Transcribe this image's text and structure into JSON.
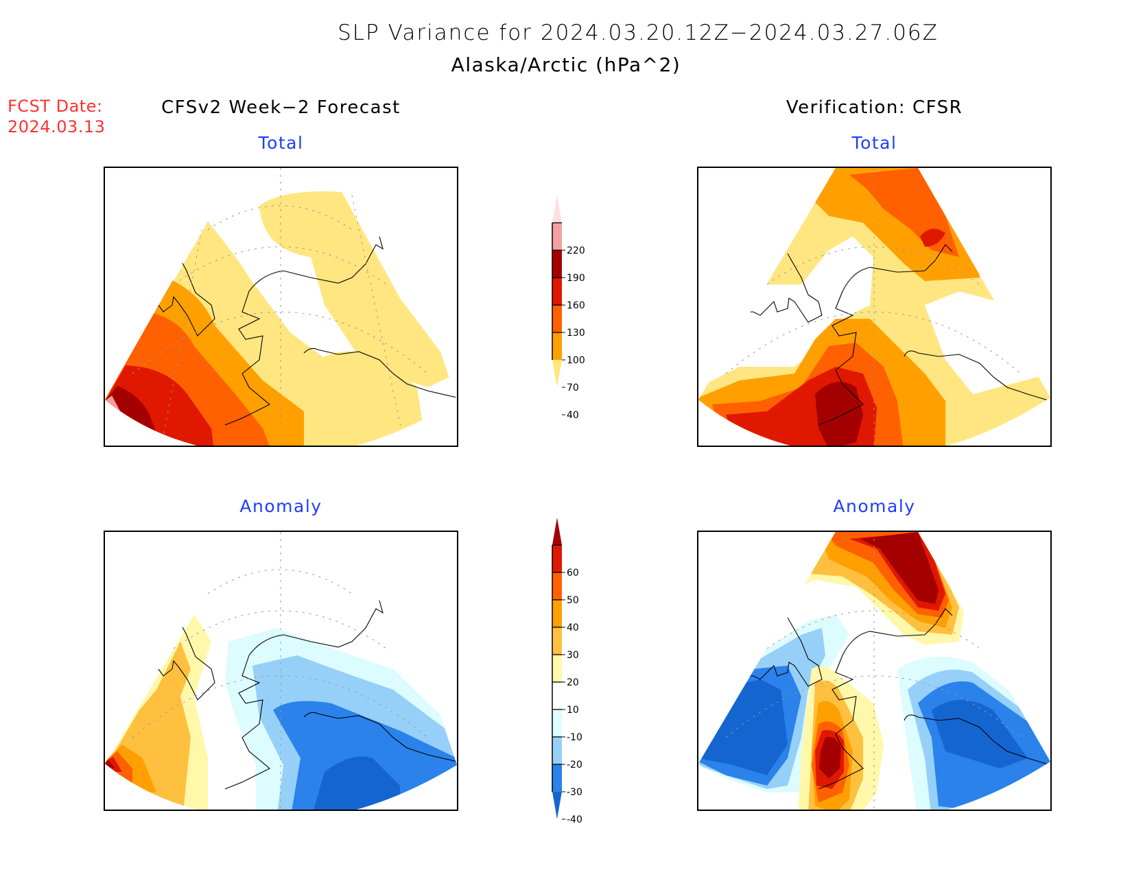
{
  "header": {
    "title": "SLP Variance for 2024.03.20.12Z−2024.03.27.06Z",
    "subtitle": "Alaska/Arctic (hPa^2)",
    "fcst_label": "FCST Date:",
    "fcst_date": "2024.03.13"
  },
  "columns": {
    "left_title": "CFSv2 Week−2 Forecast",
    "right_title": "Verification: CFSR"
  },
  "panels": {
    "top_left_label": "Total",
    "top_right_label": "Total",
    "bottom_left_label": "Anomaly",
    "bottom_right_label": "Anomaly"
  },
  "colors": {
    "fcst_red": "#ff3030",
    "subtitle_blue": "#1f3cff"
  },
  "chart_data": [
    {
      "type": "heatmap",
      "name": "total_colorbar",
      "title": "Total",
      "levels": [
        40,
        70,
        100,
        130,
        160,
        190,
        220
      ],
      "tick_labels": [
        "40",
        "70",
        "100",
        "130",
        "160",
        "190",
        "220"
      ],
      "colors": [
        "#ffe680",
        "#ffa000",
        "#ff6000",
        "#e01800",
        "#a50000",
        "#f4a0a0",
        "#ffe0e0"
      ],
      "extend": "both"
    },
    {
      "type": "heatmap",
      "name": "anomaly_colorbar",
      "title": "Anomaly",
      "levels": [
        -40,
        -30,
        -20,
        -10,
        10,
        20,
        30,
        40,
        50,
        60
      ],
      "tick_labels": [
        "-40",
        "-30",
        "-20",
        "-10",
        "10",
        "20",
        "30",
        "40",
        "50",
        "60"
      ],
      "colors": [
        "#1565d0",
        "#2a82ea",
        "#96d0f8",
        "#dcfcff",
        "#ffffff",
        "#fff8aa",
        "#ffc040",
        "#ffa000",
        "#ff6000",
        "#e01800",
        "#a50000"
      ],
      "extend": "both"
    }
  ]
}
